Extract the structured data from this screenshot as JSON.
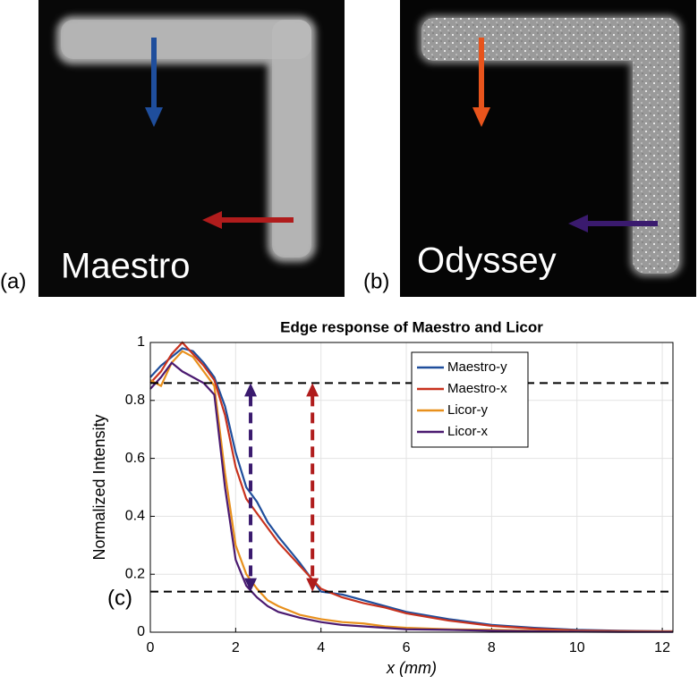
{
  "images": [
    {
      "label": "(a)",
      "caption": "Maestro"
    },
    {
      "label": "(b)",
      "caption": "Odyssey"
    }
  ],
  "chart_data": {
    "type": "line",
    "panel_label": "(c)",
    "title": "Edge response of Maestro and Licor",
    "xlabel": "x (mm)",
    "ylabel": "Normalized Intensity",
    "x": [
      0,
      0.25,
      0.5,
      0.75,
      1,
      1.25,
      1.5,
      1.75,
      2,
      2.25,
      2.5,
      2.75,
      3,
      3.5,
      4,
      4.5,
      5,
      5.5,
      6,
      7,
      8,
      9,
      10,
      11,
      12,
      12.25
    ],
    "series": [
      {
        "name": "Maestro-y",
        "color": "#1f4e9c",
        "values": [
          0.88,
          0.92,
          0.95,
          0.98,
          0.97,
          0.93,
          0.88,
          0.78,
          0.62,
          0.5,
          0.45,
          0.38,
          0.33,
          0.24,
          0.14,
          0.13,
          0.11,
          0.09,
          0.07,
          0.045,
          0.025,
          0.015,
          0.008,
          0.005,
          0.003,
          0.003
        ]
      },
      {
        "name": "Maestro-x",
        "color": "#c8321e",
        "values": [
          0.86,
          0.9,
          0.96,
          1.0,
          0.96,
          0.92,
          0.87,
          0.75,
          0.57,
          0.46,
          0.41,
          0.36,
          0.31,
          0.23,
          0.15,
          0.12,
          0.1,
          0.085,
          0.065,
          0.04,
          0.022,
          0.012,
          0.006,
          0.004,
          0.003,
          0.003
        ]
      },
      {
        "name": "Licor-y",
        "color": "#e8901c",
        "values": [
          0.87,
          0.85,
          0.93,
          0.97,
          0.95,
          0.9,
          0.85,
          0.55,
          0.3,
          0.2,
          0.15,
          0.11,
          0.09,
          0.06,
          0.045,
          0.035,
          0.03,
          0.02,
          0.015,
          0.01,
          0.008,
          0.005,
          0.003,
          0.002,
          0.002,
          0.002
        ]
      },
      {
        "name": "Licor-x",
        "color": "#4b1a70",
        "values": [
          0.84,
          0.88,
          0.93,
          0.9,
          0.88,
          0.86,
          0.82,
          0.5,
          0.25,
          0.16,
          0.12,
          0.09,
          0.07,
          0.05,
          0.035,
          0.025,
          0.02,
          0.015,
          0.01,
          0.008,
          0.005,
          0.003,
          0.002,
          0.001,
          0.001,
          0.001
        ]
      }
    ],
    "xlim": [
      0,
      12.25
    ],
    "ylim": [
      0,
      1
    ],
    "xticks": [
      0,
      2,
      4,
      6,
      8,
      10,
      12
    ],
    "yticks": [
      0,
      0.2,
      0.4,
      0.6,
      0.8,
      1
    ],
    "grid": true,
    "legend": "top-right",
    "reference_lines": [
      0.86,
      0.14
    ],
    "arrows": [
      {
        "x": 2.35,
        "color": "#3a1a6e"
      },
      {
        "x": 3.8,
        "color": "#b01c1c"
      }
    ]
  }
}
